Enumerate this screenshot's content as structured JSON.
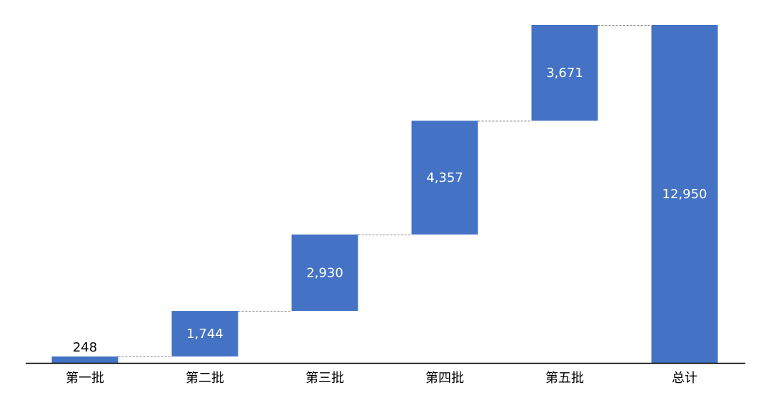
{
  "chart_data": {
    "type": "waterfall",
    "title": "",
    "xlabel": "",
    "ylabel": "",
    "categories": [
      "第一批",
      "第二批",
      "第三批",
      "第四批",
      "第五批",
      "总计"
    ],
    "values": [
      248,
      1744,
      2930,
      4357,
      3671,
      12950
    ],
    "labels": [
      "248",
      "1,744",
      "2,930",
      "4,357",
      "3,671",
      "12,950"
    ],
    "total_index": 5,
    "ylim": [
      0,
      12950
    ],
    "grid": false,
    "legend": "none",
    "colors": {
      "bar": "#4472C4",
      "connector": "#7F7F7F",
      "axis": "#000000"
    }
  }
}
